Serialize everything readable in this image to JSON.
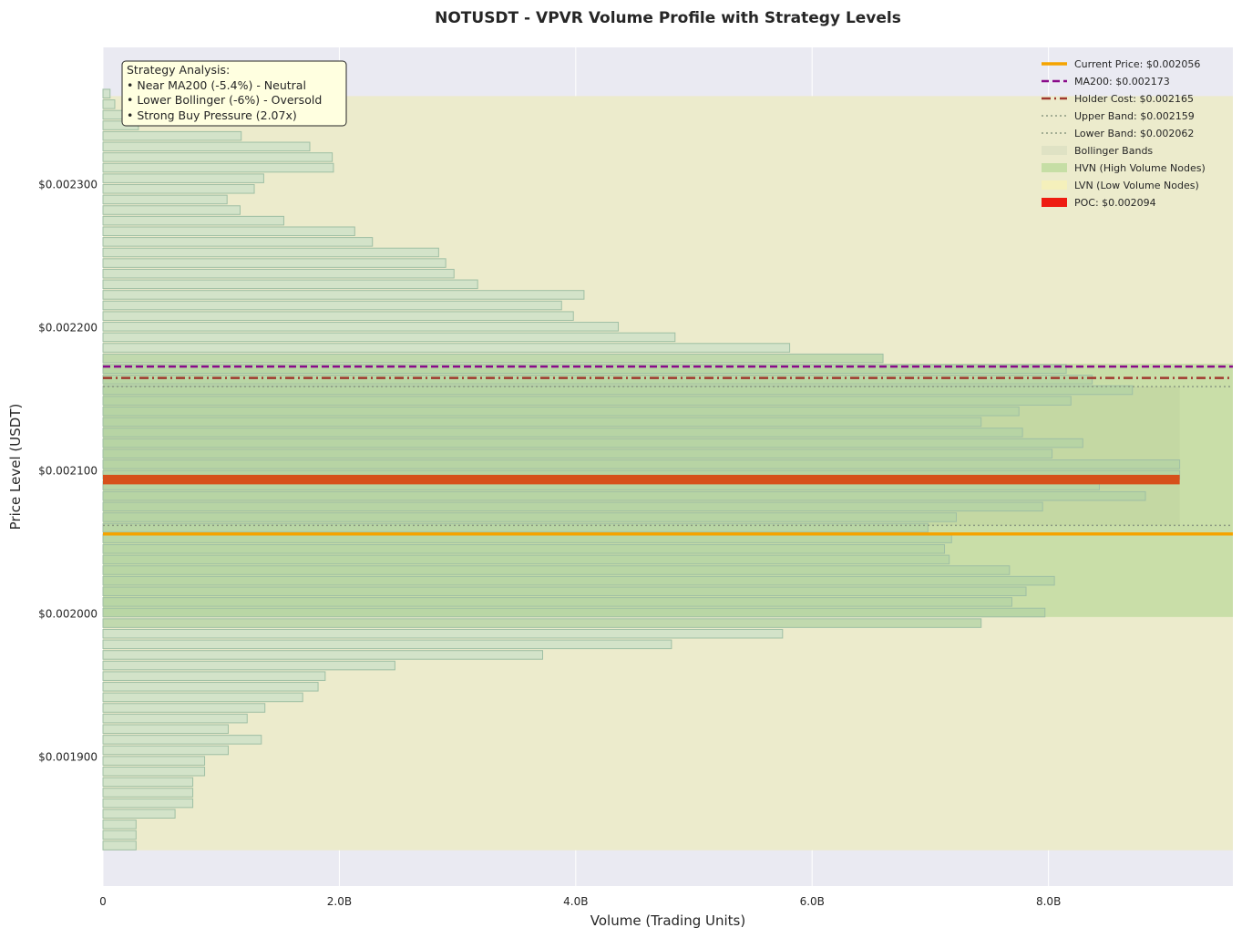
{
  "chart_data": {
    "type": "bar",
    "orientation": "horizontal",
    "title": "NOTUSDT - VPVR Volume Profile with Strategy Levels",
    "xlabel": "Volume (Trading Units)",
    "ylabel": "Price Level (USDT)",
    "xlim": [
      0,
      9.56
    ],
    "ylim": [
      0.00181,
      0.002396
    ],
    "x_unit": "B (billions)",
    "x_ticks": [
      0,
      2,
      4,
      6,
      8
    ],
    "x_tick_labels": [
      "0",
      "2.0B",
      "4.0B",
      "6.0B",
      "8.0B"
    ],
    "y_ticks": [
      0.0019,
      0.002,
      0.0021,
      0.0022,
      0.0023
    ],
    "y_tick_labels": [
      "$0.001900",
      "$0.002000",
      "$0.002100",
      "$0.002200",
      "$0.002300"
    ],
    "grid": true,
    "legend_position": "top-right",
    "price_start": 0.0018383,
    "price_step": 7.4e-06,
    "volumes": [
      0.28,
      0.28,
      0.28,
      0.61,
      0.76,
      0.76,
      0.76,
      0.86,
      0.86,
      1.06,
      1.34,
      1.06,
      1.22,
      1.37,
      1.69,
      1.82,
      1.88,
      2.47,
      3.72,
      4.81,
      5.75,
      7.43,
      7.97,
      7.69,
      7.81,
      8.05,
      7.67,
      7.16,
      7.12,
      7.18,
      6.98,
      7.22,
      7.95,
      8.82,
      8.43,
      9.11,
      9.11,
      8.03,
      8.29,
      7.78,
      7.43,
      7.75,
      8.19,
      8.71,
      8.37,
      8.15,
      6.6,
      5.81,
      4.84,
      4.36,
      3.98,
      3.88,
      4.07,
      3.17,
      2.97,
      2.9,
      2.84,
      2.28,
      2.13,
      1.53,
      1.16,
      1.05,
      1.28,
      1.36,
      1.95,
      1.94,
      1.75,
      1.17,
      0.3,
      0.2,
      0.1,
      0.06
    ],
    "hvn_min_volume": 6.5,
    "poc": {
      "price": 0.002094,
      "volume": 9.11,
      "label": "POC: $0.002094",
      "color": "#d6501b"
    },
    "levels": [
      {
        "name": "current-price",
        "label": "Current Price: $0.002056",
        "price": 0.002056,
        "color": "#f5a300",
        "style": "solid",
        "width": 3.5
      },
      {
        "name": "ma200",
        "label": "MA200: $0.002173",
        "price": 0.002173,
        "color": "#8a0a8a",
        "style": "dashed",
        "width": 2.5
      },
      {
        "name": "holder-cost",
        "label": "Holder Cost: $0.002165",
        "price": 0.002165,
        "color": "#a0392e",
        "style": "dashdot",
        "width": 2.5
      },
      {
        "name": "upper-band",
        "label": "Upper Band: $0.002159",
        "price": 0.002159,
        "color": "#8c9a82",
        "style": "dotted",
        "width": 1.5
      },
      {
        "name": "lower-band",
        "label": "Lower Band: $0.002062",
        "price": 0.002062,
        "color": "#8c9a82",
        "style": "dotted",
        "width": 1.5
      }
    ],
    "legend_patches": [
      {
        "name": "bollinger-bands",
        "label": "Bollinger Bands",
        "color": "#dfe2c4"
      },
      {
        "name": "hvn",
        "label": "HVN (High Volume Nodes)",
        "color": "#c6dea5"
      },
      {
        "name": "lvn",
        "label": "LVN (Low Volume Nodes)",
        "color": "#f5f0bb"
      },
      {
        "name": "poc",
        "label": "POC: $0.002094",
        "color": "#ee1c12"
      }
    ],
    "bollinger_zone": {
      "price_low": 0.002062,
      "price_high": 0.002159,
      "volume_max": 9.11
    },
    "hvn_zone": {
      "price_low": 0.001998,
      "price_high": 0.002175
    },
    "lvn_zone": {
      "price_low": 0.001835,
      "price_high": 0.002362
    },
    "annotation": {
      "heading": "Strategy Analysis:",
      "lines": [
        "• Near MA200 (-5.4%) - Neutral",
        "• Lower Bollinger (-6%) - Oversold",
        "• Strong Buy Pressure (2.07x)"
      ]
    },
    "colors": {
      "background": "#eaeaf2",
      "lvn_fill": "#ecebcc",
      "hvn_fill": "#c9dea8",
      "bar_fill": "#cfe2c8",
      "bar_fill_hvn": "#b3d3a4",
      "bar_edge": "#9fbfa4",
      "annotation_bg": "#ffffe0"
    }
  }
}
